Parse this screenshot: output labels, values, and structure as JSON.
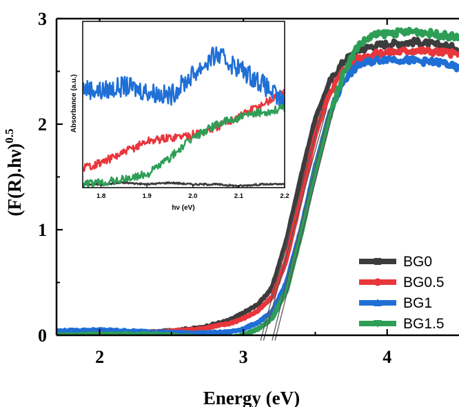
{
  "chart_data": [
    {
      "type": "line",
      "xlabel": "Energy (eV)",
      "ylabel": "(F(R).hν)",
      "ylabel_superscript": "0.5",
      "xlim": [
        1.7,
        4.5
      ],
      "ylim": [
        0,
        3
      ],
      "xticks": [
        2,
        3,
        4
      ],
      "xtick_labels": [
        "2",
        "3",
        "4"
      ],
      "yticks": [
        0,
        1,
        2,
        3
      ],
      "ytick_labels": [
        "0",
        "1",
        "2",
        "3"
      ],
      "legend_position": "bottom-right",
      "series": [
        {
          "name": "BG0",
          "color": "#3c3c3c",
          "marker": "square",
          "x": [
            1.7,
            2.0,
            2.4,
            2.7,
            2.9,
            3.0,
            3.1,
            3.2,
            3.3,
            3.4,
            3.5,
            3.6,
            3.7,
            3.8,
            3.9,
            4.0,
            4.2,
            4.4,
            4.5
          ],
          "y": [
            0.01,
            0.02,
            0.03,
            0.07,
            0.14,
            0.21,
            0.29,
            0.45,
            0.9,
            1.5,
            2.05,
            2.4,
            2.6,
            2.7,
            2.74,
            2.76,
            2.78,
            2.74,
            2.72
          ]
        },
        {
          "name": "BG0.5",
          "color": "#e8363c",
          "marker": "circle",
          "x": [
            1.7,
            2.0,
            2.4,
            2.7,
            2.9,
            3.0,
            3.1,
            3.2,
            3.3,
            3.4,
            3.5,
            3.6,
            3.7,
            3.8,
            3.9,
            4.0,
            4.2,
            4.4,
            4.5
          ],
          "y": [
            0.01,
            0.02,
            0.03,
            0.06,
            0.11,
            0.16,
            0.23,
            0.36,
            0.72,
            1.3,
            1.9,
            2.3,
            2.52,
            2.62,
            2.66,
            2.68,
            2.7,
            2.68,
            2.66
          ]
        },
        {
          "name": "BG1",
          "color": "#1f6fd6",
          "marker": "triangle-up",
          "x": [
            1.7,
            2.0,
            2.4,
            2.7,
            2.9,
            3.0,
            3.1,
            3.2,
            3.3,
            3.4,
            3.5,
            3.6,
            3.7,
            3.8,
            3.9,
            4.0,
            4.2,
            4.4,
            4.5
          ],
          "y": [
            0.04,
            0.05,
            0.03,
            0.02,
            0.03,
            0.06,
            0.12,
            0.22,
            0.5,
            1.0,
            1.6,
            2.1,
            2.42,
            2.56,
            2.6,
            2.62,
            2.6,
            2.58,
            2.52
          ]
        },
        {
          "name": "BG1.5",
          "color": "#2e9e57",
          "marker": "triangle-down",
          "x": [
            1.7,
            2.0,
            2.4,
            2.7,
            2.9,
            3.0,
            3.1,
            3.2,
            3.3,
            3.4,
            3.5,
            3.6,
            3.7,
            3.8,
            3.9,
            4.0,
            4.2,
            4.4,
            4.5
          ],
          "y": [
            0.0,
            0.01,
            0.01,
            -0.02,
            -0.02,
            0.0,
            0.06,
            0.16,
            0.42,
            0.95,
            1.55,
            2.08,
            2.5,
            2.75,
            2.84,
            2.86,
            2.88,
            2.84,
            2.82
          ]
        }
      ],
      "tangent_lines": [
        {
          "x": [
            3.12,
            3.55
          ],
          "y": [
            -0.05,
            2.15
          ]
        },
        {
          "x": [
            3.14,
            3.58
          ],
          "y": [
            -0.05,
            2.15
          ]
        },
        {
          "x": [
            3.2,
            3.6
          ],
          "y": [
            -0.05,
            2.15
          ]
        },
        {
          "x": [
            3.22,
            3.63
          ],
          "y": [
            -0.05,
            2.15
          ]
        }
      ]
    },
    {
      "type": "line",
      "xlabel": "hν (eV)",
      "ylabel": "Absorbance (a.u.)",
      "xlim": [
        1.76,
        2.2
      ],
      "ylim": [
        0,
        1
      ],
      "xticks": [
        1.8,
        1.9,
        2.0,
        2.1,
        2.2
      ],
      "xtick_labels": [
        "1.8",
        "1.9",
        "2.0",
        "2.1",
        "2.2"
      ],
      "series": [
        {
          "name": "BG0",
          "color": "#3c3c3c",
          "x": [
            1.76,
            1.8,
            1.85,
            1.9,
            1.95,
            2.0,
            2.05,
            2.1,
            2.15,
            2.2
          ],
          "y": [
            0.02,
            0.02,
            0.03,
            0.02,
            0.03,
            0.02,
            0.02,
            0.01,
            0.02,
            0.02
          ]
        },
        {
          "name": "BG0.5",
          "color": "#e8363c",
          "x": [
            1.76,
            1.8,
            1.85,
            1.9,
            1.95,
            2.0,
            2.05,
            2.1,
            2.15,
            2.2
          ],
          "y": [
            0.12,
            0.15,
            0.21,
            0.28,
            0.3,
            0.32,
            0.36,
            0.43,
            0.5,
            0.57
          ]
        },
        {
          "name": "BG1",
          "color": "#1f6fd6",
          "x": [
            1.76,
            1.8,
            1.85,
            1.9,
            1.95,
            2.0,
            2.05,
            2.1,
            2.15,
            2.2
          ],
          "y": [
            0.6,
            0.58,
            0.61,
            0.58,
            0.55,
            0.68,
            0.8,
            0.72,
            0.63,
            0.5
          ]
        },
        {
          "name": "BG1.5",
          "color": "#2e9e57",
          "x": [
            1.76,
            1.8,
            1.85,
            1.9,
            1.95,
            2.0,
            2.05,
            2.1,
            2.15,
            2.2
          ],
          "y": [
            0.02,
            0.03,
            0.05,
            0.08,
            0.18,
            0.3,
            0.38,
            0.42,
            0.45,
            0.48
          ]
        }
      ]
    }
  ]
}
